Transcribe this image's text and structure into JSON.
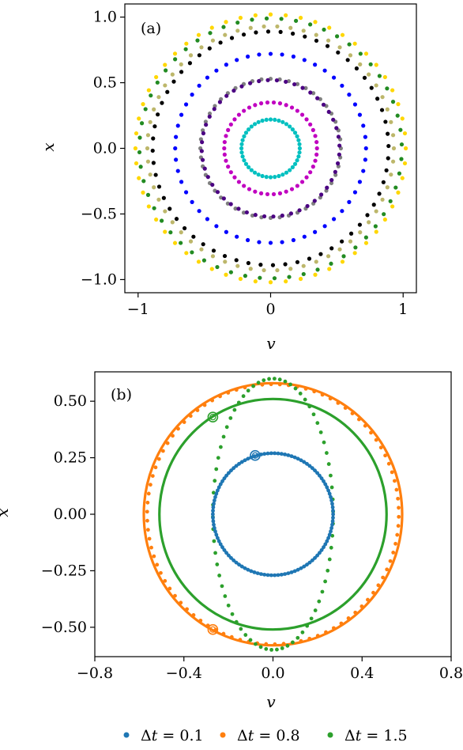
{
  "chart_data": [
    {
      "type": "scatter",
      "panel_label": "(a)",
      "xlabel": "v",
      "ylabel": "x",
      "xlim": [
        -1.1,
        1.1
      ],
      "ylim": [
        -1.1,
        1.1
      ],
      "xticks": [
        -1,
        0,
        1
      ],
      "xtick_labels": [
        "−1",
        "0",
        "1"
      ],
      "yticks": [
        -1.0,
        -0.5,
        0.0,
        0.5,
        1.0
      ],
      "ytick_labels": [
        "−1.0",
        "−0.5",
        "0.0",
        "0.5",
        "1.0"
      ],
      "grid": false,
      "legend": "none",
      "series": [
        {
          "color": "#ffd700",
          "shape": "circle",
          "radius_v": 1.02,
          "radius_x": 1.02,
          "points": 56,
          "phase": 0.0
        },
        {
          "color": "#228b22",
          "shape": "circle",
          "radius_v": 0.99,
          "radius_x": 0.99,
          "points": 56,
          "phase": 0.03
        },
        {
          "color": "#bdb76b",
          "shape": "circle",
          "radius_v": 0.93,
          "radius_x": 0.93,
          "points": 58,
          "phase": 0.0
        },
        {
          "color": "#000000",
          "shape": "circle",
          "radius_v": 0.89,
          "radius_x": 0.89,
          "points": 60,
          "phase": 0.02
        },
        {
          "color": "#0000ff",
          "shape": "circle",
          "radius_v": 0.72,
          "radius_x": 0.72,
          "points": 52,
          "phase": 0.0
        },
        {
          "color": "#808080",
          "shape": "circle",
          "radius_v": 0.53,
          "radius_x": 0.53,
          "points": 48,
          "phase": 0.0
        },
        {
          "color": "#4b0082",
          "shape": "circle",
          "radius_v": 0.52,
          "radius_x": 0.52,
          "points": 48,
          "phase": 0.04
        },
        {
          "color": "#c000c0",
          "shape": "circle",
          "radius_v": 0.35,
          "radius_x": 0.35,
          "points": 46,
          "phase": 0.0
        },
        {
          "color": "#00c0c0",
          "shape": "circle",
          "radius_v": 0.22,
          "radius_x": 0.22,
          "points": 44,
          "phase": 0.0
        }
      ]
    },
    {
      "type": "scatter",
      "panel_label": "(b)",
      "xlabel": "v",
      "ylabel": "x",
      "xlim": [
        -0.8,
        0.8
      ],
      "ylim": [
        -0.63,
        0.63
      ],
      "xticks": [
        -0.8,
        -0.4,
        0.0,
        0.4,
        0.8
      ],
      "xtick_labels": [
        "−0.8",
        "−0.4",
        "0.0",
        "0.4",
        "0.8"
      ],
      "yticks": [
        -0.5,
        -0.25,
        0.0,
        0.25,
        0.5
      ],
      "ytick_labels": [
        "−0.50",
        "−0.25",
        "0.00",
        "0.25",
        "0.50"
      ],
      "grid": false,
      "legend": "bottom",
      "series": [
        {
          "name": "Δt = 0.1",
          "label_prefix": "Δ",
          "label_var": "t",
          "label_value": " = 0.1",
          "color": "#1f77b4",
          "solid_radius": 0.27,
          "dot_radius_v": 0.27,
          "dot_radius_x": 0.27,
          "points": 110,
          "phase": 0.0,
          "start": [
            -0.08,
            0.26
          ]
        },
        {
          "name": "Δt = 0.8",
          "label_prefix": "Δ",
          "label_var": "t",
          "label_value": " = 0.8",
          "color": "#ff7f0e",
          "solid_radius": 0.58,
          "dot_radius_v": 0.565,
          "dot_radius_x": 0.575,
          "points": 90,
          "phase": 0.05,
          "start": [
            -0.27,
            -0.51
          ]
        },
        {
          "name": "Δt = 1.5",
          "label_prefix": "Δ",
          "label_var": "t",
          "label_value": " = 1.5",
          "color": "#2ca02c",
          "solid_radius": 0.51,
          "dot_radius_v": 0.27,
          "dot_radius_x": 0.6,
          "points": 70,
          "phase": 0.02,
          "start": [
            -0.27,
            0.43
          ]
        }
      ]
    }
  ]
}
